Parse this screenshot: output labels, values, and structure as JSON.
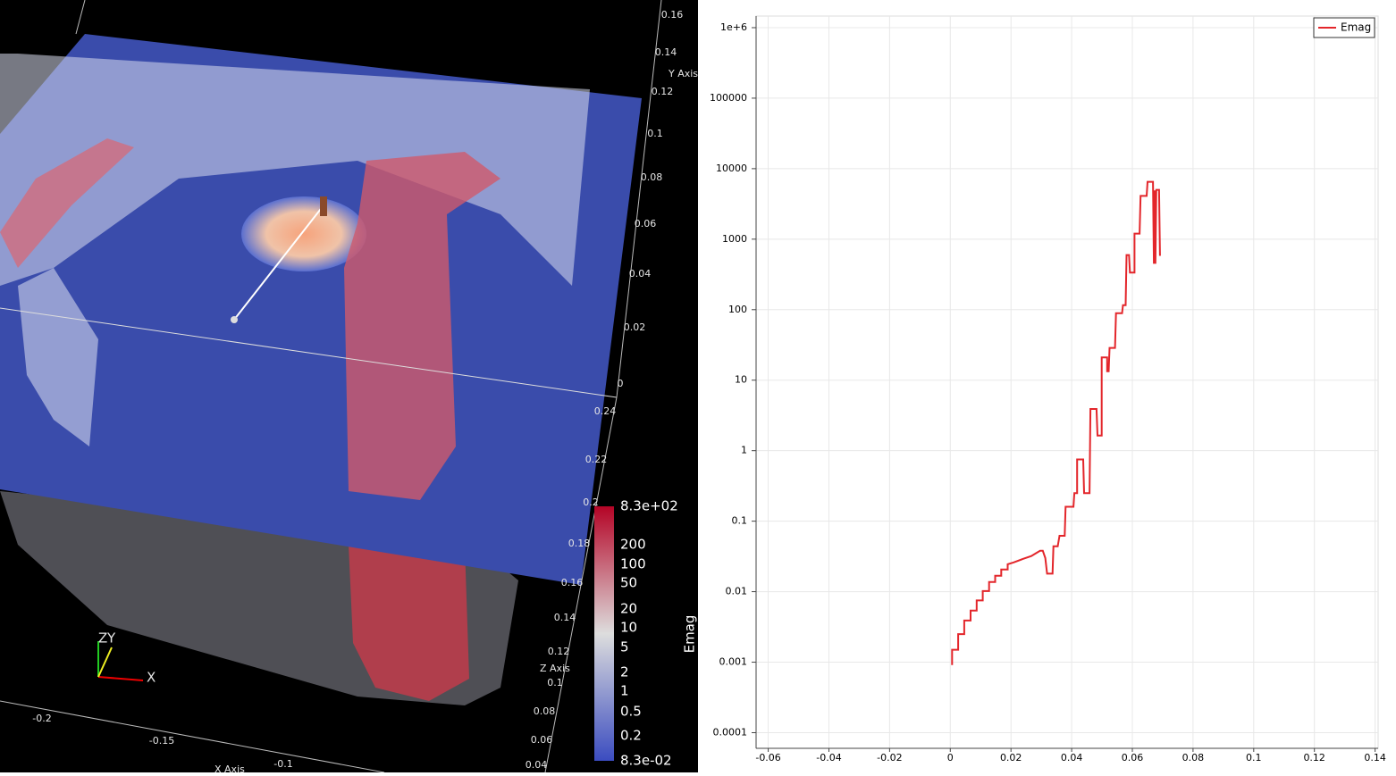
{
  "render_view": {
    "y_axis_title": "Y Axis",
    "y_axis_ticks": [
      "0.16",
      "0.14",
      "0.12",
      "0.1",
      "0.08",
      "0.06",
      "0.04",
      "0.02",
      "0"
    ],
    "z_axis_title": "Z Axis",
    "z_axis_ticks": [
      "0.24",
      "0.22",
      "0.2",
      "0.18",
      "0.16",
      "0.14",
      "0.12",
      "0.1",
      "0.08",
      "0.06",
      "0.04"
    ],
    "x_axis_title": "X Axis",
    "x_axis_ticks": [
      "-0.2",
      "-0.15",
      "-0.1"
    ],
    "orientation_labels": [
      "X",
      "Y",
      "Z"
    ],
    "color_legend": {
      "title": "Emag",
      "labels": [
        "8.3e+02",
        "200",
        "100",
        "50",
        "20",
        "10",
        "5",
        "2",
        "1",
        "0.5",
        "0.2",
        "8.3e-02"
      ]
    }
  },
  "chart_data": {
    "type": "line",
    "log_scale_y": true,
    "grid": true,
    "legend": "top-right",
    "xlim": [
      -0.064,
      0.141
    ],
    "ylim": [
      6e-05,
      1460000
    ],
    "xticks": [
      -0.06,
      -0.04,
      -0.02,
      0,
      0.02,
      0.04,
      0.06,
      0.08,
      0.1,
      0.12,
      0.14
    ],
    "yticks": [
      {
        "value": 1000000,
        "label": "1e+6"
      },
      100000,
      10000,
      1000,
      100,
      10,
      1,
      0.1,
      0.01,
      0.001,
      0.0001
    ],
    "x": [
      0.00058,
      0.00058,
      0.0026,
      0.0026,
      0.0046,
      0.0046,
      0.0067,
      0.0067,
      0.0087,
      0.0087,
      0.0107,
      0.0107,
      0.0128,
      0.0128,
      0.0148,
      0.0148,
      0.0168,
      0.0168,
      0.0189,
      0.0189,
      0.0209,
      0.0238,
      0.0267,
      0.0282,
      0.0296,
      0.0305,
      0.0313,
      0.0319,
      0.0337,
      0.034,
      0.0354,
      0.036,
      0.0377,
      0.038,
      0.0406,
      0.0409,
      0.0418,
      0.0418,
      0.0438,
      0.0441,
      0.0459,
      0.0462,
      0.0482,
      0.0485,
      0.0499,
      0.0499,
      0.0517,
      0.0517,
      0.0522,
      0.0525,
      0.0543,
      0.0546,
      0.0566,
      0.0569,
      0.0578,
      0.0581,
      0.0589,
      0.0592,
      0.0607,
      0.0607,
      0.0624,
      0.0627,
      0.0647,
      0.065,
      0.0668,
      0.0671,
      0.0673,
      0.0676,
      0.0679,
      0.0688,
      0.0691
    ],
    "series": [
      {
        "name": "Emag",
        "color": "#e3262b",
        "values": [
          0.00091,
          0.0015,
          0.0015,
          0.0025,
          0.0025,
          0.0039,
          0.0039,
          0.0054,
          0.0054,
          0.0075,
          0.0075,
          0.0102,
          0.0102,
          0.0137,
          0.0137,
          0.0168,
          0.0168,
          0.0206,
          0.0206,
          0.0245,
          0.026,
          0.029,
          0.032,
          0.035,
          0.038,
          0.038,
          0.03,
          0.018,
          0.018,
          0.044,
          0.044,
          0.062,
          0.062,
          0.16,
          0.16,
          0.25,
          0.25,
          0.75,
          0.75,
          0.25,
          0.25,
          3.9,
          3.9,
          1.64,
          1.64,
          21,
          21,
          13.4,
          13.4,
          28.7,
          28.7,
          89,
          89,
          116,
          116,
          595,
          595,
          335,
          335,
          1200,
          1200,
          4100,
          4100,
          6500,
          6500,
          447,
          4900,
          447,
          5000,
          5000,
          580
        ]
      }
    ]
  }
}
